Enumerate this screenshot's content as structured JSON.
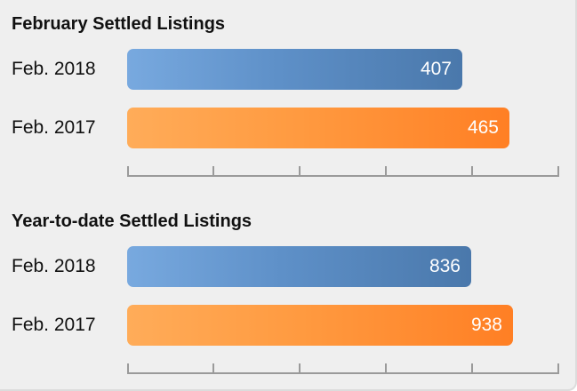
{
  "chart_data": [
    {
      "type": "bar",
      "orientation": "horizontal",
      "title": "February Settled Listings",
      "categories": [
        "Feb. 2018",
        "Feb. 2017"
      ],
      "values": [
        407,
        465
      ],
      "xlim": [
        0,
        525
      ],
      "grid": false,
      "colors": [
        "#5b8fc9",
        "#ff8f33"
      ]
    },
    {
      "type": "bar",
      "orientation": "horizontal",
      "title": "Year-to-date Settled Listings",
      "categories": [
        "Feb. 2018",
        "Feb. 2017"
      ],
      "values": [
        836,
        938
      ],
      "xlim": [
        0,
        1050
      ],
      "grid": false,
      "colors": [
        "#5b8fc9",
        "#ff8f33"
      ]
    }
  ]
}
